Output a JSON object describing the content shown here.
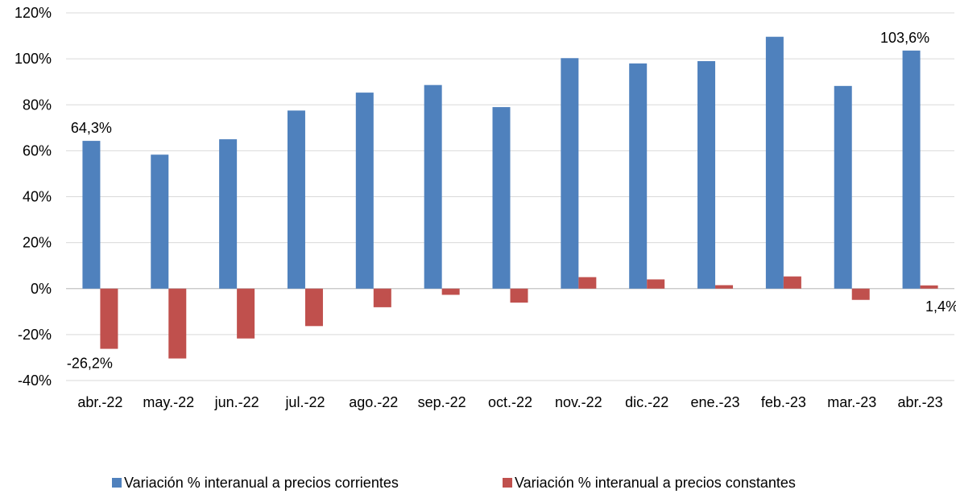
{
  "chart_data": {
    "type": "bar",
    "categories": [
      "abr.-22",
      "may.-22",
      "jun.-22",
      "jul.-22",
      "ago.-22",
      "sep.-22",
      "oct.-22",
      "nov.-22",
      "dic.-22",
      "ene.-23",
      "feb.-23",
      "mar.-23",
      "abr.-23"
    ],
    "series": [
      {
        "name": "Variación % interanual a precios corrientes",
        "color": "#4F81BD",
        "values": [
          64.3,
          58.3,
          65.0,
          77.5,
          85.3,
          88.6,
          79.0,
          100.3,
          98.0,
          99.0,
          109.6,
          88.2,
          103.6
        ]
      },
      {
        "name": "Variación % interanual a precios constantes",
        "color": "#C0504D",
        "values": [
          -26.2,
          -30.4,
          -21.7,
          -16.3,
          -8.1,
          -2.7,
          -6.1,
          5.0,
          4.0,
          1.5,
          5.3,
          -4.9,
          1.4
        ]
      }
    ],
    "ylim": [
      -40,
      120
    ],
    "yticks": [
      -40,
      -20,
      0,
      20,
      40,
      60,
      80,
      100,
      120
    ],
    "ytick_labels": [
      "-40%",
      "-20%",
      "0%",
      "20%",
      "40%",
      "60%",
      "80%",
      "100%",
      "120%"
    ],
    "data_labels": [
      {
        "series": 0,
        "index": 0,
        "text": "64,3%"
      },
      {
        "series": 1,
        "index": 0,
        "text": "-26,2%"
      },
      {
        "series": 0,
        "index": 12,
        "text": "103,6%"
      },
      {
        "series": 1,
        "index": 12,
        "text": "1,4%"
      }
    ],
    "grid": true,
    "legend_position": "bottom",
    "title": "",
    "xlabel": "",
    "ylabel": ""
  }
}
